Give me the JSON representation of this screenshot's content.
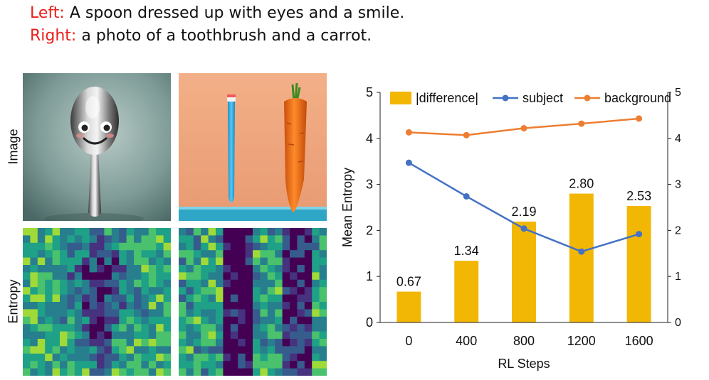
{
  "captions": {
    "left_tag": "Left:",
    "left_text": "A spoon dressed up with eyes and a smile.",
    "right_tag": "Right:",
    "right_text": "a photo of a toothbrush and a carrot."
  },
  "row_labels": {
    "image": "Image",
    "entropy": "Entropy"
  },
  "colors": {
    "bar": "#f2b705",
    "subject": "#4472c4",
    "background": "#ed7d31",
    "caption_tag": "#e8201c"
  },
  "chart_data": {
    "type": "bar",
    "categories": [
      "0",
      "400",
      "800",
      "1200",
      "1600"
    ],
    "series": [
      {
        "name": "|difference|",
        "kind": "bar",
        "values": [
          0.67,
          1.34,
          2.19,
          2.8,
          2.53
        ],
        "labels": [
          "0.67",
          "1.34",
          "2.19",
          "2.80",
          "2.53"
        ]
      },
      {
        "name": "subject",
        "kind": "line",
        "values": [
          3.47,
          2.74,
          2.04,
          1.54,
          1.92
        ]
      },
      {
        "name": "background",
        "kind": "line",
        "values": [
          4.13,
          4.07,
          4.22,
          4.32,
          4.43
        ]
      }
    ],
    "xlabel": "RL Steps",
    "ylabel": "Mean Entropy",
    "ylim": [
      0,
      5
    ],
    "yticks": [
      "0",
      "1",
      "2",
      "3",
      "4",
      "5"
    ],
    "y2ticks": [
      "0",
      "1",
      "2",
      "3",
      "4",
      "5"
    ],
    "legend_position": "top"
  }
}
